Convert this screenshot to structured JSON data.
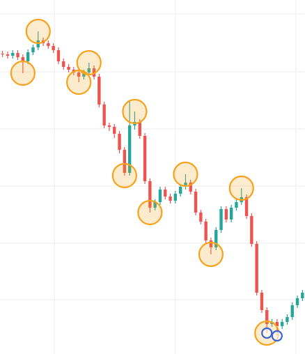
{
  "chart_data": {
    "type": "candlestick",
    "up_color": "#26a69a",
    "down_color": "#ef5350",
    "highlight_color": "#f7a21b",
    "ring_color": "#3a63d8",
    "grid": true,
    "xlim": [
      -0.5,
      59.5
    ],
    "xticks": [
      10.2,
      34,
      57.7
    ],
    "ylim": [
      0,
      508
    ],
    "yticks": [
      488,
      405,
      323,
      241,
      159,
      78
    ],
    "open": [
      431,
      430,
      428,
      432,
      426,
      420,
      433,
      440,
      450,
      446,
      442,
      436,
      420,
      412,
      408,
      404,
      398,
      404,
      410,
      398,
      358,
      328,
      326,
      316,
      293,
      260,
      328,
      333,
      313,
      248,
      210,
      218,
      236,
      226,
      220,
      230,
      240,
      246,
      233,
      203,
      190,
      163,
      153,
      178,
      208,
      193,
      210,
      218,
      225,
      198,
      158,
      88,
      63,
      43,
      46,
      40,
      46,
      53,
      70,
      80
    ],
    "high": [
      435,
      434,
      436,
      436,
      430,
      437,
      444,
      463,
      454,
      450,
      446,
      440,
      424,
      416,
      412,
      408,
      408,
      418,
      414,
      402,
      362,
      332,
      330,
      320,
      297,
      363,
      348,
      337,
      317,
      252,
      222,
      240,
      240,
      230,
      234,
      244,
      258,
      250,
      237,
      207,
      194,
      167,
      182,
      212,
      212,
      214,
      222,
      238,
      229,
      202,
      162,
      92,
      67,
      50,
      50,
      50,
      57,
      74,
      84,
      92
    ],
    "low": [
      426,
      424,
      424,
      422,
      403,
      416,
      429,
      436,
      442,
      438,
      432,
      416,
      408,
      404,
      400,
      390,
      394,
      400,
      394,
      354,
      324,
      320,
      310,
      288,
      256,
      256,
      322,
      309,
      244,
      203,
      206,
      214,
      222,
      216,
      216,
      226,
      236,
      229,
      199,
      186,
      159,
      143,
      149,
      174,
      189,
      189,
      206,
      214,
      194,
      154,
      84,
      59,
      30,
      39,
      26,
      36,
      42,
      49,
      66,
      76
    ],
    "close": [
      430,
      428,
      432,
      426,
      420,
      433,
      440,
      450,
      446,
      442,
      436,
      420,
      412,
      408,
      404,
      398,
      404,
      410,
      398,
      358,
      328,
      326,
      316,
      293,
      260,
      328,
      333,
      313,
      248,
      210,
      218,
      236,
      226,
      220,
      230,
      240,
      246,
      233,
      203,
      190,
      163,
      153,
      178,
      208,
      193,
      210,
      218,
      225,
      198,
      158,
      88,
      63,
      43,
      46,
      40,
      46,
      53,
      70,
      80,
      88
    ],
    "highlights": [
      {
        "index": 4,
        "at": "low"
      },
      {
        "index": 7,
        "at": "high"
      },
      {
        "index": 15,
        "at": "low"
      },
      {
        "index": 17,
        "at": "high"
      },
      {
        "index": 24,
        "at": "low"
      },
      {
        "index": 26,
        "at": "high"
      },
      {
        "index": 29,
        "at": "low"
      },
      {
        "index": 36,
        "at": "high"
      },
      {
        "index": 41,
        "at": "low"
      },
      {
        "index": 47,
        "at": "high"
      },
      {
        "index": 52,
        "at": "low"
      }
    ],
    "rings": [
      {
        "index": 52,
        "at": "low"
      },
      {
        "index": 54,
        "at": "low"
      }
    ]
  }
}
